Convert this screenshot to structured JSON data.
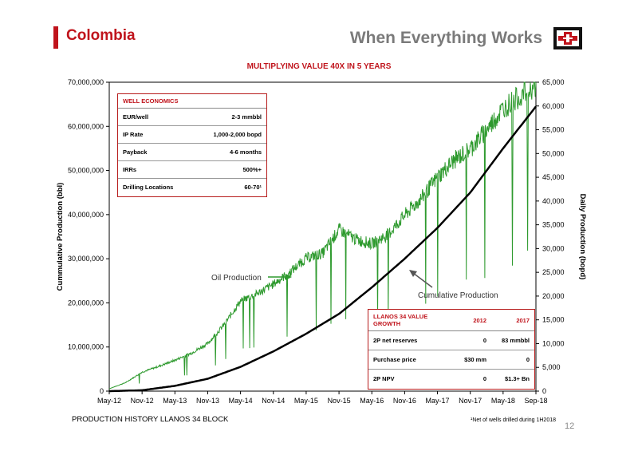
{
  "header": {
    "title": "Colombia",
    "headline": "When Everything Works",
    "subtitle": "MULTIPLYING VALUE 40X IN 5 YEARS"
  },
  "colors": {
    "accent": "#c0141c",
    "oil": "#2e9a2e",
    "cumulative": "#000000",
    "headline": "#7a7a7a"
  },
  "footer": {
    "left": "PRODUCTION HISTORY LLANOS 34 BLOCK",
    "note": "¹Net of wells drilled during 1H2018",
    "page": "12"
  },
  "well_economics": {
    "title": "WELL ECONOMICS",
    "rows": [
      {
        "label": "EUR/well",
        "value": "2-3 mmbbl"
      },
      {
        "label": "IP Rate",
        "value": "1,000-2,000 bopd"
      },
      {
        "label": "Payback",
        "value": "4-6 months"
      },
      {
        "label": "IRRs",
        "value": "500%+"
      },
      {
        "label": "Drilling Locations",
        "value": "60-70¹"
      }
    ]
  },
  "llanos_value": {
    "title": "LLANOS 34 VALUE GROWTH",
    "col1": "2012",
    "col2": "2017",
    "rows": [
      {
        "label": "2P net reserves",
        "v2012": "0",
        "v2017": "83 mmbbl"
      },
      {
        "label": "Purchase price",
        "v2012": "$30 mm",
        "v2017": "0"
      },
      {
        "label": "2P NPV",
        "v2012": "0",
        "v2017": "$1.3+ Bn"
      }
    ]
  },
  "chart_data": {
    "type": "line",
    "xlabel": "",
    "ylabel_left": "Cummulative Production (bbl)",
    "ylabel_right": "Daily Production (bopd)",
    "x_ticks": [
      "May-12",
      "Nov-12",
      "May-13",
      "Nov-13",
      "May-14",
      "Nov-14",
      "May-15",
      "Nov-15",
      "May-16",
      "Nov-16",
      "May-17",
      "Nov-17",
      "May-18",
      "Sep-18"
    ],
    "y_left_ticks": [
      "0",
      "10,000,000",
      "20,000,000",
      "30,000,000",
      "40,000,000",
      "50,000,000",
      "60,000,000",
      "70,000,000"
    ],
    "y_right_ticks": [
      "0",
      "5,000",
      "10,000",
      "15,000",
      "20,000",
      "25,000",
      "30,000",
      "35,000",
      "40,000",
      "45,000",
      "50,000",
      "55,000",
      "60,000",
      "65,000"
    ],
    "ylim_left": [
      0,
      70000000
    ],
    "ylim_right": [
      0,
      65000
    ],
    "series": [
      {
        "name": "Oil Production",
        "axis": "right",
        "x": [
          "May-12",
          "Aug-12",
          "Nov-12",
          "Feb-13",
          "May-13",
          "Aug-13",
          "Nov-13",
          "Feb-14",
          "May-14",
          "Aug-14",
          "Nov-14",
          "Feb-15",
          "May-15",
          "Aug-15",
          "Nov-15",
          "Feb-16",
          "May-16",
          "Aug-16",
          "Nov-16",
          "Feb-17",
          "May-17",
          "Aug-17",
          "Nov-17",
          "Feb-18",
          "May-18",
          "Jul-18",
          "Sep-18"
        ],
        "values": [
          500,
          1800,
          4000,
          5200,
          6500,
          8000,
          10000,
          14000,
          19000,
          20500,
          22500,
          25000,
          28000,
          29000,
          34000,
          32000,
          31000,
          33000,
          37000,
          40500,
          45000,
          48500,
          51000,
          55000,
          59500,
          62000,
          64500
        ]
      },
      {
        "name": "Cumulative Production",
        "axis": "left",
        "x": [
          "May-12",
          "Nov-12",
          "May-13",
          "Nov-13",
          "May-14",
          "Nov-14",
          "May-15",
          "Nov-15",
          "May-16",
          "Nov-16",
          "May-17",
          "Nov-17",
          "May-18",
          "Sep-18"
        ],
        "values": [
          0,
          200000,
          1200000,
          2800000,
          5500000,
          9000000,
          13000000,
          17500000,
          23500000,
          30000000,
          37000000,
          45000000,
          55000000,
          64500000
        ]
      }
    ],
    "annotations": [
      {
        "text": "Oil Production"
      },
      {
        "text": "Cumulative Production"
      }
    ]
  }
}
